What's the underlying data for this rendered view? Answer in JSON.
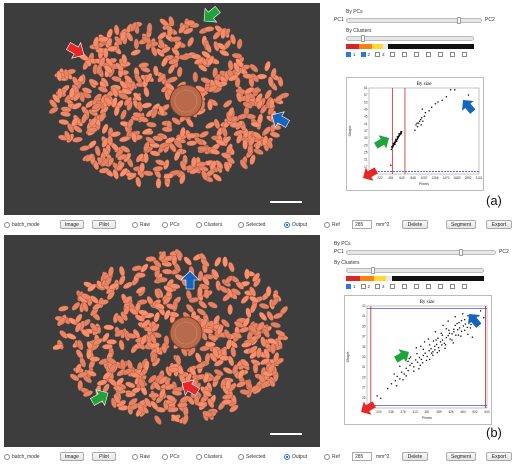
{
  "panels": [
    {
      "tag": "(a)",
      "controls": {
        "by_pcs_label": "By PCs",
        "pc1_label": "PC1",
        "pc2_label": "PC2",
        "by_clusters_label": "By Clusters",
        "clusters": [
          {
            "num": "1",
            "checked": true
          },
          {
            "num": "2",
            "checked": true
          },
          {
            "num": "3",
            "checked": false
          },
          {
            "num": "",
            "checked": false
          },
          {
            "num": "",
            "checked": false
          },
          {
            "num": "",
            "checked": false
          },
          {
            "num": "",
            "checked": false
          },
          {
            "num": "",
            "checked": false
          },
          {
            "num": "",
            "checked": false
          },
          {
            "num": "",
            "checked": false
          }
        ]
      },
      "chart_data": {
        "type": "scatter",
        "title": "By size",
        "xlabel": "Pixels",
        "ylabel": "Shape",
        "x_ticks": [
          "5",
          "222",
          "451",
          "640",
          "848",
          "1057",
          "1266",
          "1470",
          "1683",
          "1892",
          "2101"
        ],
        "y_ticks": [
          "13",
          "17",
          "21",
          "25",
          "29",
          "33",
          "37",
          "41",
          "45",
          "49",
          "53",
          "57",
          "61"
        ],
        "xlim": [
          5,
          2101
        ],
        "ylim": [
          13,
          62
        ],
        "points": [
          [
            430,
            27
          ],
          [
            445,
            28
          ],
          [
            452,
            28.5
          ],
          [
            460,
            29
          ],
          [
            468,
            29.2
          ],
          [
            476,
            29.8
          ],
          [
            484,
            30
          ],
          [
            492,
            30.4
          ],
          [
            500,
            30.9
          ],
          [
            508,
            31.2
          ],
          [
            516,
            31.5
          ],
          [
            524,
            31.9
          ],
          [
            532,
            32.3
          ],
          [
            540,
            32.8
          ],
          [
            548,
            33.1
          ],
          [
            556,
            33.5
          ],
          [
            564,
            34
          ],
          [
            572,
            34.4
          ],
          [
            580,
            34.8
          ],
          [
            588,
            35.2
          ],
          [
            596,
            35.6
          ],
          [
            604,
            36
          ],
          [
            612,
            36.4
          ],
          [
            620,
            36.8
          ],
          [
            628,
            37.2
          ],
          [
            440,
            28.6
          ],
          [
            458,
            28.4
          ],
          [
            474,
            29.4
          ],
          [
            488,
            30.8
          ],
          [
            504,
            31.7
          ],
          [
            520,
            32.2
          ],
          [
            536,
            32.5
          ],
          [
            552,
            33.7
          ],
          [
            568,
            34.6
          ],
          [
            584,
            35
          ],
          [
            600,
            35.8
          ],
          [
            616,
            36.2
          ],
          [
            500,
            29.9
          ],
          [
            530,
            31.6
          ],
          [
            560,
            33.6
          ],
          [
            590,
            35.4
          ],
          [
            610,
            37
          ],
          [
            620,
            36
          ],
          [
            470,
            30.4
          ],
          [
            515,
            32.8
          ],
          [
            545,
            34.2
          ],
          [
            575,
            35.9
          ],
          [
            880,
            38
          ],
          [
            900,
            41
          ],
          [
            930,
            40
          ],
          [
            950,
            42
          ],
          [
            970,
            43
          ],
          [
            990,
            44
          ],
          [
            1010,
            45
          ],
          [
            1030,
            43
          ],
          [
            1060,
            46
          ],
          [
            920,
            42
          ],
          [
            1000,
            41
          ],
          [
            1080,
            48
          ],
          [
            1150,
            49
          ],
          [
            1200,
            51
          ],
          [
            1270,
            53
          ],
          [
            1320,
            54
          ],
          [
            1400,
            55
          ],
          [
            1480,
            57
          ],
          [
            1560,
            61
          ],
          [
            1640,
            61
          ],
          [
            1900,
            58
          ],
          [
            420,
            18
          ],
          [
            1020,
            50
          ]
        ]
      }
    },
    {
      "tag": "(b)",
      "controls": {
        "by_pcs_label": "By PCs",
        "pc1_label": "PC1",
        "pc2_label": "PC2",
        "by_clusters_label": "By Clusters",
        "clusters": [
          {
            "num": "1",
            "checked": true
          },
          {
            "num": "2",
            "checked": false
          },
          {
            "num": "3",
            "checked": false
          },
          {
            "num": "",
            "checked": false
          },
          {
            "num": "",
            "checked": false
          },
          {
            "num": "",
            "checked": false
          },
          {
            "num": "",
            "checked": false
          },
          {
            "num": "",
            "checked": false
          },
          {
            "num": "",
            "checked": false
          },
          {
            "num": "",
            "checked": false
          }
        ]
      },
      "chart_data": {
        "type": "scatter",
        "title": "By size",
        "xlabel": "Pixels",
        "ylabel": "Shape",
        "x_ticks": [
          "163",
          "200",
          "238",
          "276",
          "313",
          "351",
          "389",
          "426",
          "464",
          "502",
          "540"
        ],
        "y_ticks": [
          "23",
          "25",
          "27",
          "29",
          "31",
          "33",
          "35",
          "37",
          "39",
          "41",
          "43"
        ],
        "xlim": [
          163,
          540
        ],
        "ylim": [
          23,
          44
        ],
        "points": [
          [
            195,
            25.5
          ],
          [
            228,
            27
          ],
          [
            240,
            28
          ],
          [
            252,
            28.6
          ],
          [
            258,
            29.5
          ],
          [
            266,
            29
          ],
          [
            272,
            30.4
          ],
          [
            280,
            30
          ],
          [
            286,
            31.2
          ],
          [
            292,
            30.7
          ],
          [
            298,
            31.8
          ],
          [
            304,
            32.2
          ],
          [
            310,
            31.5
          ],
          [
            316,
            32.9
          ],
          [
            322,
            32.4
          ],
          [
            328,
            33.4
          ],
          [
            334,
            33
          ],
          [
            340,
            33.8
          ],
          [
            346,
            34.3
          ],
          [
            352,
            33.6
          ],
          [
            358,
            34.8
          ],
          [
            364,
            35.2
          ],
          [
            370,
            34.6
          ],
          [
            376,
            35.7
          ],
          [
            382,
            36.1
          ],
          [
            388,
            35.4
          ],
          [
            394,
            36.6
          ],
          [
            400,
            37
          ],
          [
            406,
            36.3
          ],
          [
            412,
            37.5
          ],
          [
            418,
            37.9
          ],
          [
            424,
            37.2
          ],
          [
            430,
            38.3
          ],
          [
            436,
            38.7
          ],
          [
            442,
            38
          ],
          [
            448,
            39.1
          ],
          [
            454,
            39.5
          ],
          [
            460,
            38.8
          ],
          [
            466,
            39.9
          ],
          [
            472,
            40.3
          ],
          [
            478,
            39.6
          ],
          [
            484,
            40.7
          ],
          [
            490,
            40.2
          ],
          [
            496,
            41.1
          ],
          [
            502,
            41.5
          ],
          [
            508,
            41
          ],
          [
            514,
            42
          ],
          [
            300,
            33.5
          ],
          [
            310,
            30.6
          ],
          [
            320,
            34.2
          ],
          [
            330,
            31.8
          ],
          [
            340,
            35.1
          ],
          [
            350,
            32.8
          ],
          [
            360,
            36
          ],
          [
            370,
            33.9
          ],
          [
            380,
            37
          ],
          [
            390,
            34.8
          ],
          [
            400,
            38
          ],
          [
            410,
            36
          ],
          [
            420,
            39
          ],
          [
            430,
            37
          ],
          [
            440,
            40
          ],
          [
            450,
            38
          ],
          [
            460,
            41
          ],
          [
            470,
            39
          ],
          [
            480,
            42
          ],
          [
            360,
            33
          ],
          [
            372,
            36.8
          ],
          [
            384,
            34.4
          ],
          [
            396,
            38.4
          ],
          [
            408,
            35.3
          ],
          [
            422,
            38.4
          ],
          [
            434,
            36.4
          ],
          [
            446,
            40.4
          ],
          [
            458,
            37.8
          ],
          [
            470,
            41.2
          ],
          [
            286,
            29.6
          ],
          [
            296,
            33.2
          ],
          [
            326,
            31.1
          ],
          [
            338,
            32.3
          ],
          [
            366,
            34.3
          ],
          [
            376,
            35
          ],
          [
            386,
            37.4
          ],
          [
            398,
            36
          ],
          [
            412,
            39.3
          ],
          [
            436,
            39.2
          ],
          [
            452,
            40.6
          ],
          [
            488,
            39.5
          ],
          [
            520,
            43
          ],
          [
            530,
            41.6
          ],
          [
            206,
            25
          ],
          [
            248,
            30
          ],
          [
            256,
            27.6
          ],
          [
            266,
            31.6
          ],
          [
            276,
            28.8
          ],
          [
            292,
            32.6
          ],
          [
            318,
            35.4
          ],
          [
            332,
            35.7
          ],
          [
            344,
            36.6
          ],
          [
            356,
            37.2
          ],
          [
            378,
            38.7
          ],
          [
            402,
            40
          ],
          [
            418,
            40.9
          ],
          [
            440,
            41.8
          ],
          [
            464,
            42.4
          ],
          [
            480,
            38.2
          ],
          [
            494,
            37.6
          ],
          [
            506,
            39.9
          ]
        ]
      }
    }
  ],
  "toolbar": {
    "batch_mode": "batch_mode",
    "image_btn": "Image",
    "pilot_btn": "Pilot",
    "raw": "Raw",
    "pcs": "PCs",
    "clusters": "Clusters",
    "selected": "Selected",
    "output": "Output",
    "ref_label": "Ref",
    "ref_value": "285",
    "unit": "mm^2",
    "delete_btn": "Delete",
    "segment_btn": "Segment",
    "export_btn": "Export"
  },
  "colors": {
    "arrow_red": "#e8262a",
    "arrow_green": "#1fa33a",
    "arrow_blue": "#1565c0",
    "plot_red": "#cc2222",
    "plot_blue": "#2233cc",
    "grain": "#e39777",
    "background": "#3d3d3d",
    "colorbar": [
      "#d62728",
      "#ff7f0e",
      "#ffd92f",
      "#e8e8e8",
      "#111111"
    ]
  }
}
